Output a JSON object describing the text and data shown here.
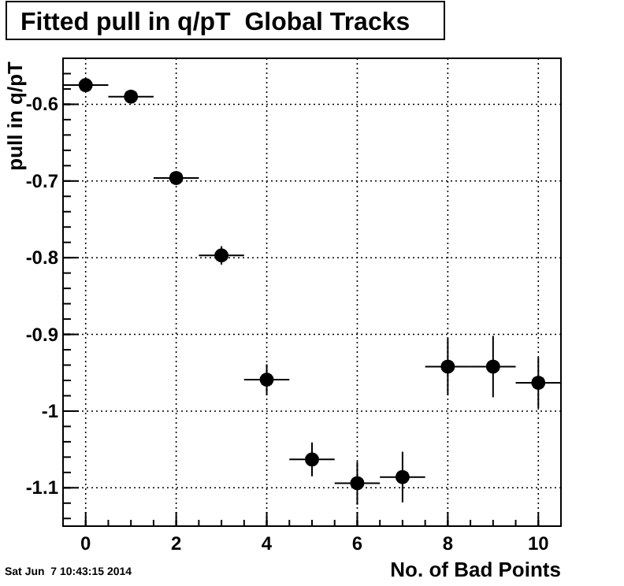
{
  "chart_data": {
    "type": "scatter",
    "title": "Fitted pull in q/pT  Global Tracks",
    "xlabel": "No. of Bad Points",
    "ylabel": "pull in q/pT",
    "annotations": [
      "Sat Jun  7 10:43:15 2014"
    ],
    "x": [
      0,
      1,
      2,
      3,
      4,
      5,
      6,
      7,
      8,
      9,
      10
    ],
    "series": [
      {
        "color": "#000000",
        "values": [
          -0.575,
          -0.59,
          -0.696,
          -0.797,
          -0.959,
          -1.063,
          -1.094,
          -1.086,
          -0.942,
          -0.942,
          -0.963
        ],
        "errors": [
          0.004,
          0.004,
          0.006,
          0.012,
          0.02,
          0.022,
          0.028,
          0.033,
          0.037,
          0.04,
          0.033
        ],
        "xerrors": [
          0.5,
          0.5,
          0.5,
          0.5,
          0.5,
          0.5,
          0.5,
          0.5,
          0.5,
          0.5,
          0.5
        ]
      }
    ],
    "xlim": [
      -0.5,
      10.5
    ],
    "xticks": [
      0,
      2,
      4,
      6,
      8,
      10
    ],
    "ylim": [
      -1.15,
      -0.54
    ],
    "yticks": [
      -0.6,
      -0.7,
      -0.8,
      -0.9,
      -1,
      -1.1
    ],
    "grid": true,
    "marker": "circle"
  }
}
